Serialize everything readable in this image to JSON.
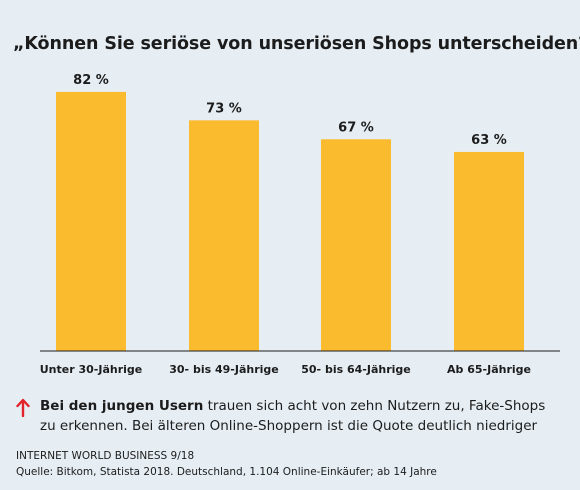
{
  "title": "„Können Sie seriöse von unseriösen Shops unterscheiden?“",
  "chart_data": {
    "type": "bar",
    "title": "„Können Sie seriöse von unseriösen Shops unterscheiden?“",
    "categories": [
      "Unter 30-Jährige",
      "30- bis 49-Jährige",
      "50- bis 64-Jährige",
      "Ab 65-Jährige"
    ],
    "values": [
      82,
      73,
      67,
      63
    ],
    "value_labels": [
      "82 %",
      "73 %",
      "67 %",
      "63 %"
    ],
    "unit": "%",
    "ylim": [
      0,
      100
    ],
    "grid": false,
    "bar_color": "#fbbb2f"
  },
  "note": {
    "icon": "arrow-up-icon",
    "icon_color": "#e2232a",
    "highlight": "Bei den jungen Usern",
    "rest": " trauen sich acht von zehn Nutzern zu, Fake-Shops zu erkennen. Bei älteren Online-Shoppern ist die Quote deutlich niedriger"
  },
  "publication": "INTERNET WORLD BUSINESS 9/18",
  "source": "Quelle: Bitkom, Statista 2018. Deutschland, 1.104 Online-Einkäufer; ab 14 Jahre",
  "colors": {
    "background": "#e6eef4",
    "bar": "#fbbb2f",
    "axis": "#1c1c1c",
    "arrow": "#e2232a"
  }
}
